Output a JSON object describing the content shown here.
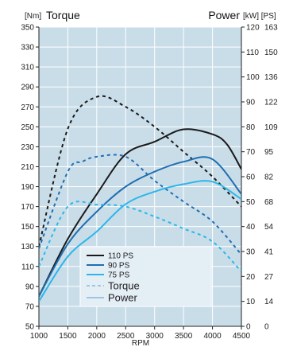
{
  "chart_data": {
    "type": "line",
    "header": {
      "torque_unit": "[Nm]",
      "torque_label": "Torque",
      "power_label": "Power",
      "power_units": "[kW] [PS]"
    },
    "xlabel": "RPM",
    "xlim": [
      1000,
      4500
    ],
    "x_ticks": [
      1000,
      1500,
      2000,
      2500,
      3000,
      3500,
      4000,
      4500
    ],
    "torque_axis": {
      "ylim": [
        50,
        350
      ],
      "ticks": [
        50,
        70,
        90,
        110,
        130,
        150,
        170,
        190,
        210,
        230,
        250,
        270,
        290,
        310,
        330,
        350
      ]
    },
    "power_axis": {
      "ylim": [
        0,
        120
      ],
      "kw_ticks": [
        0,
        10,
        20,
        30,
        40,
        50,
        60,
        70,
        80,
        90,
        100,
        110,
        120
      ],
      "ps_ticks": [
        "0",
        "14",
        "27",
        "41",
        "54",
        "68",
        "82",
        "95",
        "109",
        "122",
        "136",
        "150",
        "163"
      ]
    },
    "grid": true,
    "legend_placement": "bottom-center",
    "legend": [
      {
        "label": "110 PS",
        "kind": "series",
        "color": "#1a1a1a"
      },
      {
        "label": "90 PS",
        "kind": "series",
        "color": "#1f6fb2"
      },
      {
        "label": "75 PS",
        "kind": "series",
        "color": "#2eb6ea"
      },
      {
        "label": "Torque",
        "kind": "style",
        "color": "#9ec6e3",
        "dash": true
      },
      {
        "label": "Power",
        "kind": "style",
        "color": "#9ec6e3",
        "dash": false
      }
    ],
    "series": [
      {
        "name": "110 PS",
        "color": "#1a1a1a",
        "torque": {
          "x": [
            1000,
            1500,
            2000,
            2500,
            3000,
            3500,
            4000,
            4500
          ],
          "y": [
            130,
            248,
            280,
            270,
            250,
            225,
            200,
            170
          ]
        },
        "power": {
          "x": [
            1000,
            1500,
            2000,
            2500,
            3000,
            3500,
            4000,
            4250,
            4500
          ],
          "y": [
            12,
            35,
            53,
            69,
            74,
            79,
            77,
            73,
            63
          ]
        }
      },
      {
        "name": "90 PS",
        "color": "#1f6fb2",
        "torque": {
          "x": [
            1000,
            1500,
            1750,
            2000,
            2500,
            3000,
            3500,
            4000,
            4500
          ],
          "y": [
            128,
            205,
            215,
            220,
            220,
            196,
            175,
            155,
            122
          ]
        },
        "power": {
          "x": [
            1000,
            1500,
            2000,
            2500,
            3000,
            3500,
            4000,
            4500
          ],
          "y": [
            12,
            33,
            46,
            56,
            62,
            66,
            67,
            53
          ]
        }
      },
      {
        "name": "75 PS",
        "color": "#2eb6ea",
        "torque": {
          "x": [
            1000,
            1500,
            2000,
            2500,
            3000,
            3500,
            4000,
            4500
          ],
          "y": [
            110,
            170,
            172,
            170,
            160,
            148,
            135,
            105
          ]
        },
        "power": {
          "x": [
            1000,
            1500,
            2000,
            2500,
            3000,
            3500,
            4000,
            4500
          ],
          "y": [
            10,
            28,
            38,
            49,
            54,
            57,
            58,
            51
          ]
        }
      }
    ]
  }
}
